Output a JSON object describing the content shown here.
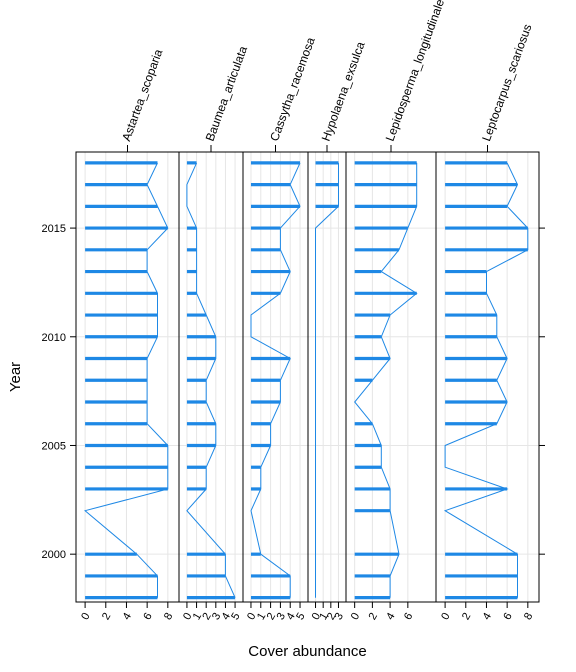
{
  "chart_data": {
    "type": "bar",
    "orientation": "horizontal",
    "panel_layout": "side-by-side",
    "xlabel": "Cover abundance",
    "ylabel": "Year",
    "y_ticks": [
      2000,
      2005,
      2010,
      2015
    ],
    "ylim": [
      2018.5,
      1997.8
    ],
    "grid": true,
    "color": "#1E88E5",
    "years": [
      1998,
      1999,
      2000,
      2002,
      2003,
      2004,
      2005,
      2006,
      2007,
      2008,
      2009,
      2010,
      2011,
      2012,
      2013,
      2014,
      2015,
      2016,
      2017,
      2018
    ],
    "panels": [
      {
        "name": "Astartea_scoparia",
        "xlim": [
          -0.3,
          8.5
        ],
        "x_ticks": [
          0,
          2,
          4,
          6,
          8
        ],
        "values": [
          7,
          7,
          5,
          0,
          8,
          8,
          8,
          6,
          6,
          6,
          6,
          7,
          7,
          7,
          6,
          6,
          8,
          7,
          6,
          7
        ]
      },
      {
        "name": "Baumea_articulata",
        "xlim": [
          -0.2,
          5.2
        ],
        "x_ticks": [
          0,
          1,
          2,
          3,
          4,
          5
        ],
        "values": [
          5,
          4,
          4,
          0,
          2,
          2,
          3,
          3,
          2,
          2,
          3,
          3,
          2,
          1,
          1,
          1,
          1,
          0,
          0,
          1
        ]
      },
      {
        "name": "Cassytha_racemosa",
        "xlim": [
          -0.2,
          5.2
        ],
        "x_ticks": [
          0,
          1,
          2,
          3,
          4,
          5
        ],
        "values": [
          4,
          4,
          1,
          0,
          1,
          1,
          2,
          2,
          3,
          3,
          4,
          0,
          0,
          3,
          4,
          3,
          3,
          5,
          4,
          5
        ]
      },
      {
        "name": "Hypolaena_exsulca",
        "xlim": [
          -0.2,
          3.2
        ],
        "x_ticks": [
          0,
          1,
          2,
          3
        ],
        "values": [
          0,
          0,
          0,
          0,
          0,
          0,
          0,
          0,
          0,
          0,
          0,
          0,
          0,
          0,
          0,
          0,
          0,
          3,
          3,
          3
        ]
      },
      {
        "name": "Lepidosperma_longitudinale",
        "xlim": [
          -0.3,
          8.5
        ],
        "x_ticks": [
          0,
          2,
          4,
          6
        ],
        "values": [
          4,
          4,
          5,
          4,
          4,
          3,
          3,
          2,
          0,
          2,
          4,
          3,
          4,
          7,
          3,
          5,
          6,
          7,
          7,
          7
        ]
      },
      {
        "name": "Leptocarpus_scariosus",
        "xlim": [
          -0.3,
          8.5
        ],
        "x_ticks": [
          0,
          2,
          4,
          6,
          8
        ],
        "values": [
          7,
          7,
          7,
          0,
          6,
          0,
          0,
          5,
          6,
          5,
          6,
          5,
          5,
          4,
          4,
          8,
          8,
          6,
          7,
          6
        ]
      }
    ]
  }
}
